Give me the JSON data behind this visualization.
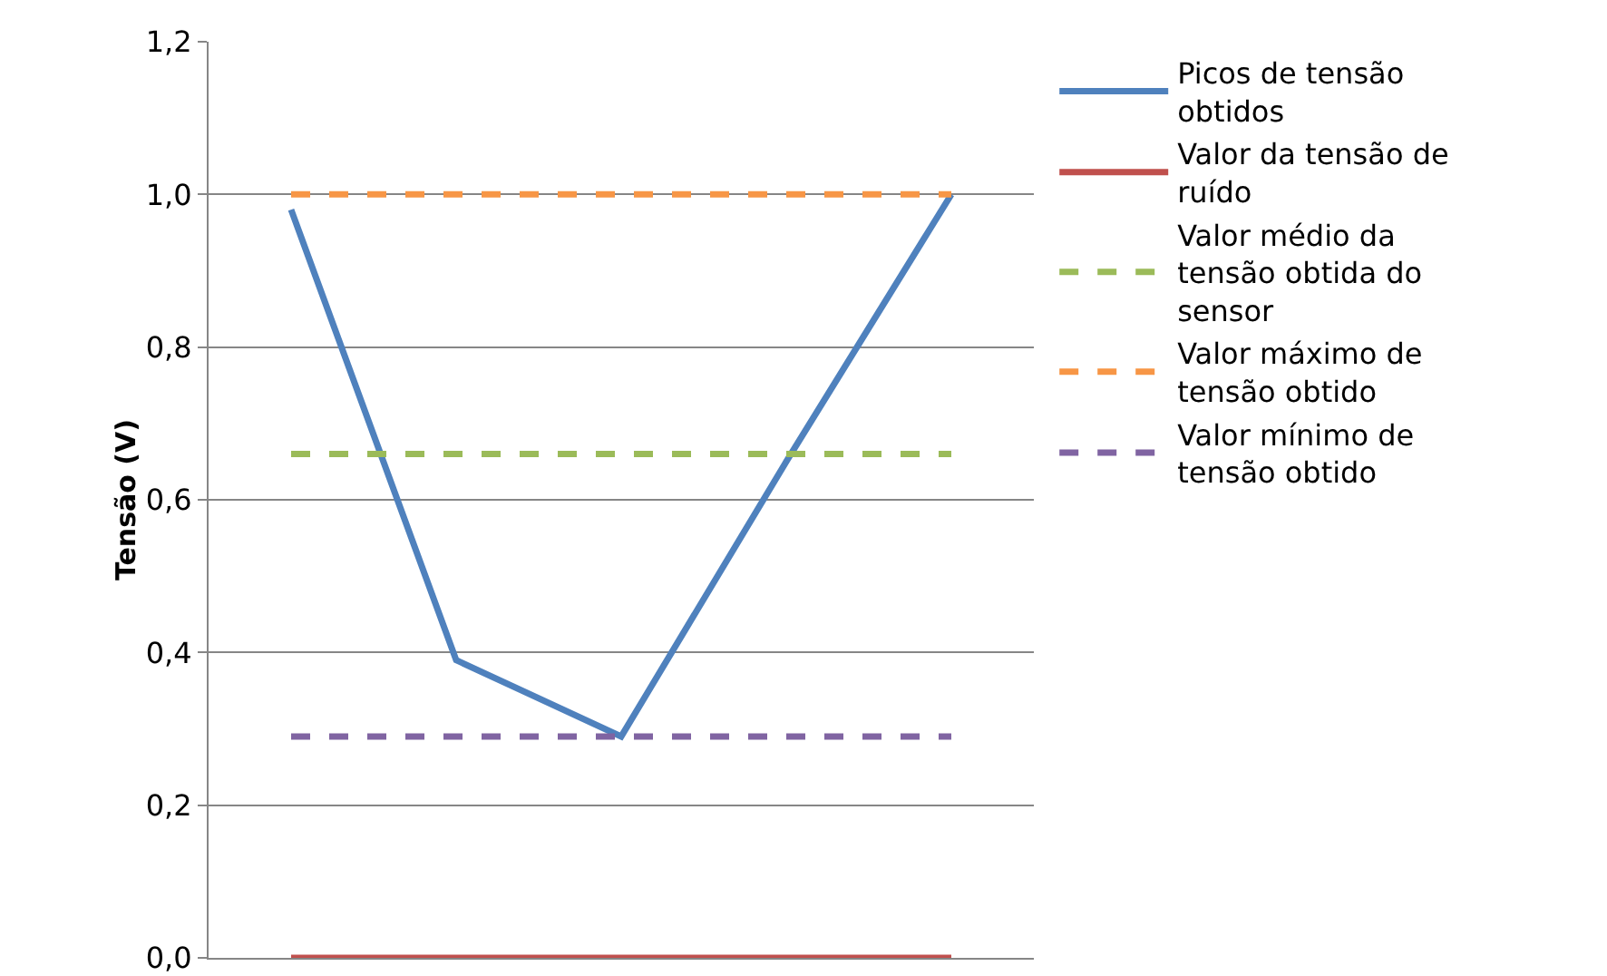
{
  "chart_data": {
    "type": "line",
    "ylabel": "Tensão (V)",
    "categories": [
      null,
      null,
      null,
      null,
      null
    ],
    "series": [
      {
        "name": "Picos de tensão obtidos",
        "color": "#4f81bd",
        "values": [
          0.98,
          0.39,
          0.29,
          0.65,
          1.0
        ],
        "line_style": "solid"
      },
      {
        "name": "Valor da tensão de ruído",
        "color": "#c0504d",
        "values": [
          0,
          0,
          0,
          0,
          0
        ],
        "line_style": "solid"
      },
      {
        "name": "Valor médio da tensão obtida do sensor",
        "color": "#9bbb59",
        "values": [
          0.66,
          0.66,
          0.66,
          0.66,
          0.66
        ],
        "line_style": "dashed"
      },
      {
        "name": "Valor máximo de tensão obtido",
        "color": "#f79646",
        "values": [
          1.0,
          1.0,
          1.0,
          1.0,
          1.0
        ],
        "line_style": "dashed"
      },
      {
        "name": "Valor mínimo de tensão obtido",
        "color": "#8064a2",
        "values": [
          0.29,
          0.29,
          0.29,
          0.29,
          0.29
        ],
        "line_style": "dashed"
      }
    ],
    "ylim": [
      0,
      1.2
    ],
    "yticks": [
      {
        "value": 0,
        "label": "0,0"
      },
      {
        "value": 0.2,
        "label": "0,2"
      },
      {
        "value": 0.4,
        "label": "0,4"
      },
      {
        "value": 0.6,
        "label": "0,6"
      },
      {
        "value": 0.8,
        "label": "0,8"
      },
      {
        "value": 1.0,
        "label": "1,0"
      },
      {
        "value": 1.2,
        "label": "1,2"
      }
    ],
    "grid": "y",
    "legend": "right",
    "tick_labels": "y",
    "marker": "none"
  }
}
